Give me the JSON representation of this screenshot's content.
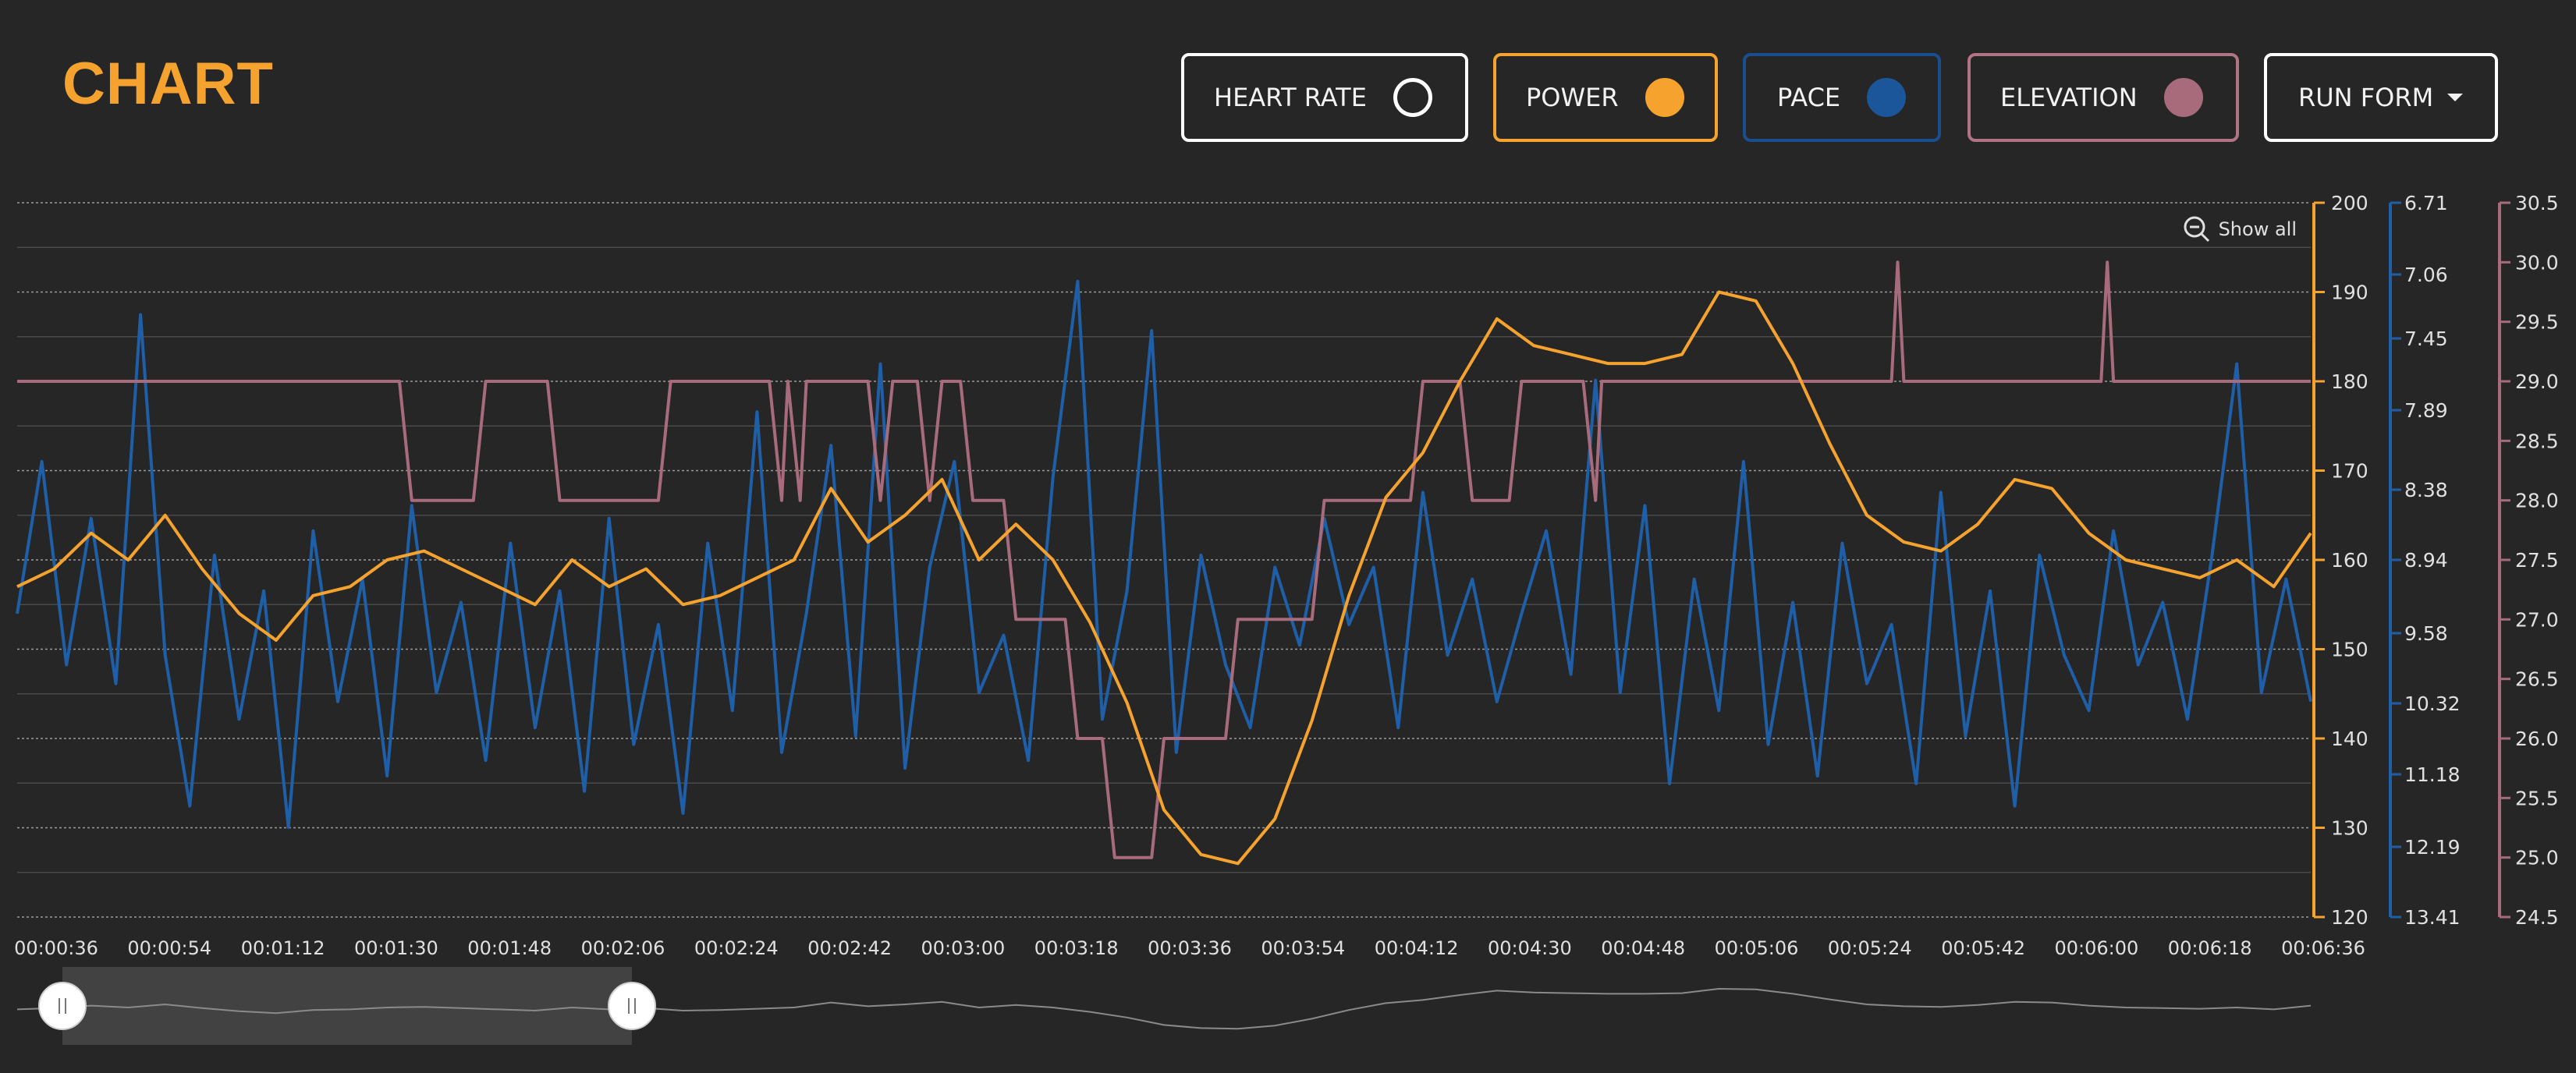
{
  "header": {
    "title": "CHART",
    "title_color": "#f5a32e"
  },
  "toggles": [
    {
      "label": "HEART RATE",
      "border": "#ffffff",
      "dot_fill": "transparent",
      "dot_border": "#ffffff"
    },
    {
      "label": "POWER",
      "border": "#f5a32e",
      "dot_fill": "#f5a32e",
      "dot_border": "#f5a32e"
    },
    {
      "label": "PACE",
      "border": "#1a4f8f",
      "dot_fill": "#1a5699",
      "dot_border": "#1a5699"
    },
    {
      "label": "ELEVATION",
      "border": "#b07484",
      "dot_fill": "#a86b7c",
      "dot_border": "#a86b7c"
    }
  ],
  "run_form_label": "RUN FORM",
  "zoom": {
    "show_all_label": "Show all",
    "icon": "zoom-out-icon"
  },
  "chart_data": {
    "type": "line",
    "xlabel": "",
    "x_ticks": [
      "00:00:36",
      "00:00:54",
      "00:01:12",
      "00:01:30",
      "00:01:48",
      "00:02:06",
      "00:02:24",
      "00:02:42",
      "00:03:00",
      "00:03:18",
      "00:03:36",
      "00:03:54",
      "00:04:12",
      "00:04:30",
      "00:04:48",
      "00:05:06",
      "00:05:24",
      "00:05:42",
      "00:06:00",
      "00:06:18",
      "00:06:36"
    ],
    "x_range_seconds": [
      36,
      408
    ],
    "axes": {
      "power": {
        "ylim": [
          120,
          200
        ],
        "ticks": [
          "200",
          "190",
          "180",
          "170",
          "160",
          "150",
          "140",
          "130",
          "120"
        ],
        "color": "#f5a32e"
      },
      "pace": {
        "ticks": [
          "6.71",
          "7.06",
          "7.45",
          "7.89",
          "8.38",
          "8.94",
          "9.58",
          "10.32",
          "11.18",
          "12.19",
          "13.41"
        ],
        "color": "#1f5fa8"
      },
      "elevation": {
        "ylim": [
          24.5,
          30.5
        ],
        "ticks": [
          "30.5",
          "30.0",
          "29.5",
          "29.0",
          "28.5",
          "28.0",
          "27.5",
          "27.0",
          "26.5",
          "26.0",
          "25.5",
          "25.0",
          "24.5"
        ],
        "color": "#a86b7c"
      }
    },
    "series": [
      {
        "name": "POWER",
        "axis": "power",
        "color": "#f5a32e",
        "points": [
          [
            36,
            157
          ],
          [
            42,
            159
          ],
          [
            48,
            163
          ],
          [
            54,
            160
          ],
          [
            60,
            165
          ],
          [
            66,
            159
          ],
          [
            72,
            154
          ],
          [
            78,
            151
          ],
          [
            84,
            156
          ],
          [
            90,
            157
          ],
          [
            96,
            160
          ],
          [
            102,
            161
          ],
          [
            108,
            159
          ],
          [
            114,
            157
          ],
          [
            120,
            155
          ],
          [
            126,
            160
          ],
          [
            132,
            157
          ],
          [
            138,
            159
          ],
          [
            144,
            155
          ],
          [
            150,
            156
          ],
          [
            156,
            158
          ],
          [
            162,
            160
          ],
          [
            168,
            168
          ],
          [
            174,
            162
          ],
          [
            180,
            165
          ],
          [
            186,
            169
          ],
          [
            192,
            160
          ],
          [
            198,
            164
          ],
          [
            204,
            160
          ],
          [
            210,
            153
          ],
          [
            216,
            144
          ],
          [
            222,
            132
          ],
          [
            228,
            127
          ],
          [
            234,
            126
          ],
          [
            240,
            131
          ],
          [
            246,
            142
          ],
          [
            252,
            156
          ],
          [
            258,
            167
          ],
          [
            264,
            172
          ],
          [
            270,
            180
          ],
          [
            276,
            187
          ],
          [
            282,
            184
          ],
          [
            288,
            183
          ],
          [
            294,
            182
          ],
          [
            300,
            182
          ],
          [
            306,
            183
          ],
          [
            312,
            190
          ],
          [
            318,
            189
          ],
          [
            324,
            182
          ],
          [
            330,
            173
          ],
          [
            336,
            165
          ],
          [
            342,
            162
          ],
          [
            348,
            161
          ],
          [
            354,
            164
          ],
          [
            360,
            169
          ],
          [
            366,
            168
          ],
          [
            372,
            163
          ],
          [
            378,
            160
          ],
          [
            384,
            159
          ],
          [
            390,
            158
          ],
          [
            396,
            160
          ],
          [
            402,
            157
          ],
          [
            408,
            163
          ]
        ]
      },
      {
        "name": "PACE",
        "axis": "pace",
        "color": "#1f5fa8",
        "points": [
          [
            36,
            9.4
          ],
          [
            40,
            8.2
          ],
          [
            44,
            9.9
          ],
          [
            48,
            8.6
          ],
          [
            52,
            10.1
          ],
          [
            56,
            7.3
          ],
          [
            60,
            9.8
          ],
          [
            64,
            11.6
          ],
          [
            68,
            8.9
          ],
          [
            72,
            10.5
          ],
          [
            76,
            9.2
          ],
          [
            80,
            11.9
          ],
          [
            84,
            8.7
          ],
          [
            88,
            10.3
          ],
          [
            92,
            9.1
          ],
          [
            96,
            11.2
          ],
          [
            100,
            8.5
          ],
          [
            104,
            10.2
          ],
          [
            108,
            9.3
          ],
          [
            112,
            11.0
          ],
          [
            116,
            8.8
          ],
          [
            120,
            10.6
          ],
          [
            124,
            9.2
          ],
          [
            128,
            11.4
          ],
          [
            132,
            8.6
          ],
          [
            136,
            10.8
          ],
          [
            140,
            9.5
          ],
          [
            144,
            11.7
          ],
          [
            148,
            8.8
          ],
          [
            152,
            10.4
          ],
          [
            156,
            7.9
          ],
          [
            160,
            10.9
          ],
          [
            164,
            9.4
          ],
          [
            168,
            8.1
          ],
          [
            172,
            10.7
          ],
          [
            176,
            7.6
          ],
          [
            180,
            11.1
          ],
          [
            184,
            9.0
          ],
          [
            188,
            8.2
          ],
          [
            192,
            10.2
          ],
          [
            196,
            9.6
          ],
          [
            200,
            11.0
          ],
          [
            204,
            8.3
          ],
          [
            208,
            7.1
          ],
          [
            212,
            10.5
          ],
          [
            216,
            9.2
          ],
          [
            220,
            7.4
          ],
          [
            224,
            10.9
          ],
          [
            228,
            8.9
          ],
          [
            232,
            9.9
          ],
          [
            236,
            10.6
          ],
          [
            240,
            9.0
          ],
          [
            244,
            9.7
          ],
          [
            248,
            8.6
          ],
          [
            252,
            9.5
          ],
          [
            256,
            9.0
          ],
          [
            260,
            10.6
          ],
          [
            264,
            8.4
          ],
          [
            268,
            9.8
          ],
          [
            272,
            9.1
          ],
          [
            276,
            10.3
          ],
          [
            280,
            9.4
          ],
          [
            284,
            8.7
          ],
          [
            288,
            10.0
          ],
          [
            292,
            7.7
          ],
          [
            296,
            10.2
          ],
          [
            300,
            8.5
          ],
          [
            304,
            11.3
          ],
          [
            308,
            9.1
          ],
          [
            312,
            10.4
          ],
          [
            316,
            8.2
          ],
          [
            320,
            10.8
          ],
          [
            324,
            9.3
          ],
          [
            328,
            11.2
          ],
          [
            332,
            8.8
          ],
          [
            336,
            10.1
          ],
          [
            340,
            9.5
          ],
          [
            344,
            11.3
          ],
          [
            348,
            8.4
          ],
          [
            352,
            10.7
          ],
          [
            356,
            9.2
          ],
          [
            360,
            11.6
          ],
          [
            364,
            8.9
          ],
          [
            368,
            9.8
          ],
          [
            372,
            10.4
          ],
          [
            376,
            8.7
          ],
          [
            380,
            9.9
          ],
          [
            384,
            9.3
          ],
          [
            388,
            10.5
          ],
          [
            392,
            8.9
          ],
          [
            396,
            7.6
          ],
          [
            400,
            10.2
          ],
          [
            404,
            9.1
          ],
          [
            408,
            10.3
          ]
        ]
      },
      {
        "name": "ELEVATION",
        "axis": "elevation",
        "color": "#a86b7c",
        "points": [
          [
            36,
            29.0
          ],
          [
            98,
            29.0
          ],
          [
            100,
            28.0
          ],
          [
            110,
            28.0
          ],
          [
            112,
            29.0
          ],
          [
            122,
            29.0
          ],
          [
            124,
            28.0
          ],
          [
            140,
            28.0
          ],
          [
            142,
            29.0
          ],
          [
            158,
            29.0
          ],
          [
            160,
            28.0
          ],
          [
            161,
            29.0
          ],
          [
            163,
            28.0
          ],
          [
            164,
            29.0
          ],
          [
            174,
            29.0
          ],
          [
            176,
            28.0
          ],
          [
            178,
            29.0
          ],
          [
            182,
            29.0
          ],
          [
            184,
            28.0
          ],
          [
            186,
            29.0
          ],
          [
            189,
            29.0
          ],
          [
            191,
            28.0
          ],
          [
            196,
            28.0
          ],
          [
            198,
            27.0
          ],
          [
            206,
            27.0
          ],
          [
            208,
            26.0
          ],
          [
            212,
            26.0
          ],
          [
            214,
            25.0
          ],
          [
            220,
            25.0
          ],
          [
            222,
            26.0
          ],
          [
            232,
            26.0
          ],
          [
            234,
            27.0
          ],
          [
            246,
            27.0
          ],
          [
            248,
            28.0
          ],
          [
            262,
            28.0
          ],
          [
            264,
            29.0
          ],
          [
            270,
            29.0
          ],
          [
            272,
            28.0
          ],
          [
            278,
            28.0
          ],
          [
            280,
            29.0
          ],
          [
            290,
            29.0
          ],
          [
            292,
            28.0
          ],
          [
            293,
            29.0
          ],
          [
            340,
            29.0
          ],
          [
            341,
            30.0
          ],
          [
            342,
            29.0
          ],
          [
            374,
            29.0
          ],
          [
            375,
            30.0
          ],
          [
            376,
            29.0
          ],
          [
            408,
            29.0
          ]
        ]
      }
    ]
  }
}
